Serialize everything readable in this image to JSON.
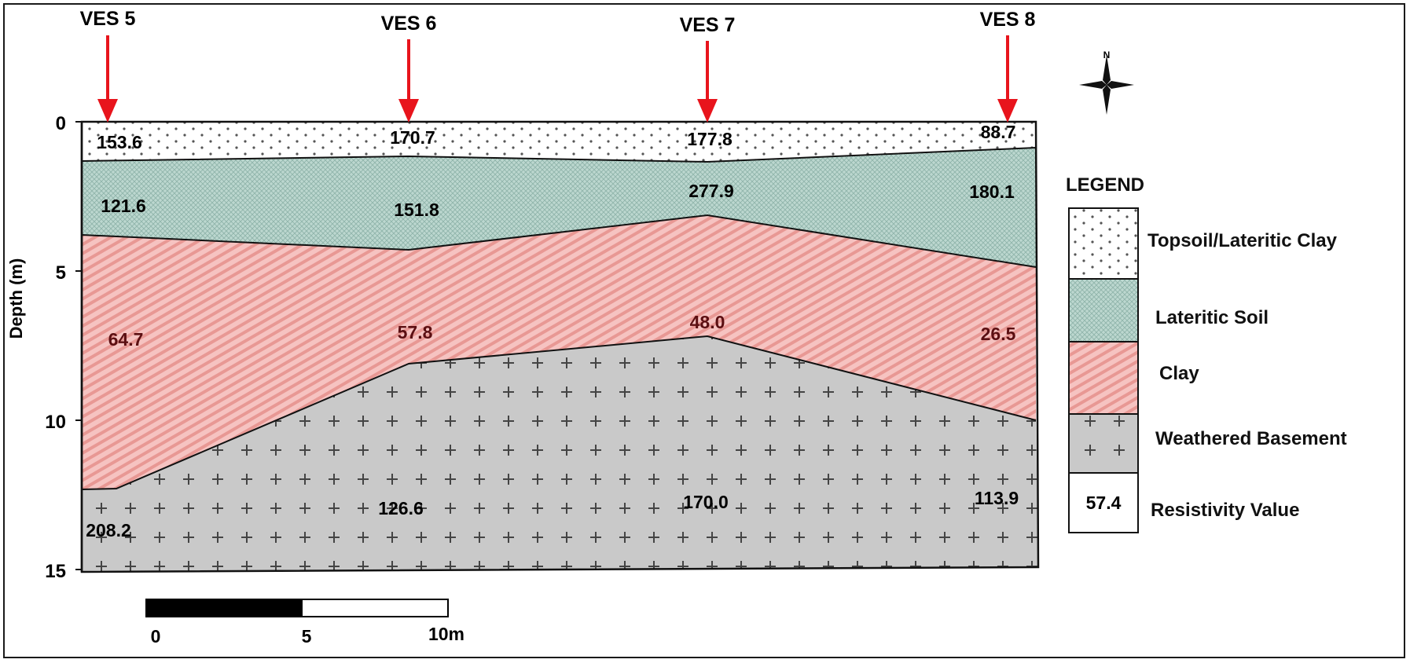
{
  "stations": [
    "VES 5",
    "VES 6",
    "VES 7",
    "VES 8"
  ],
  "axis": {
    "ylabel": "Depth (m)",
    "ticks": [
      "0",
      "5",
      "10",
      "15"
    ]
  },
  "layers": [
    {
      "name": "Topsoil/Lateritic Clay",
      "pattern": "dots",
      "color": "#ffffff",
      "resistivity": [
        "153.6",
        "170.7",
        "177.8",
        "88.7"
      ]
    },
    {
      "name": "Lateritic Soil",
      "pattern": "crosshatch",
      "color": "#bcd7cf",
      "resistivity": [
        "121.6",
        "151.8",
        "277.9",
        "180.1"
      ]
    },
    {
      "name": "Clay",
      "pattern": "diagonal-stripes",
      "color": "#f3b2b0",
      "resistivity": [
        "64.7",
        "57.8",
        "48.0",
        "26.5"
      ]
    },
    {
      "name": "Weathered Basement",
      "pattern": "plus-signs",
      "color": "#c8c8c8",
      "resistivity": [
        "208.2",
        "126.6",
        "170.0",
        "113.9"
      ]
    }
  ],
  "legend": {
    "title": "LEGEND",
    "resistivity_sample": "57.4",
    "resistivity_label": "Resistivity Value"
  },
  "scale_bar": {
    "ticks": [
      "0",
      "5",
      "10m"
    ]
  },
  "north_arrow": {
    "label": "N",
    "icon": "north-arrow-icon"
  },
  "marker_color": "#e8141c"
}
